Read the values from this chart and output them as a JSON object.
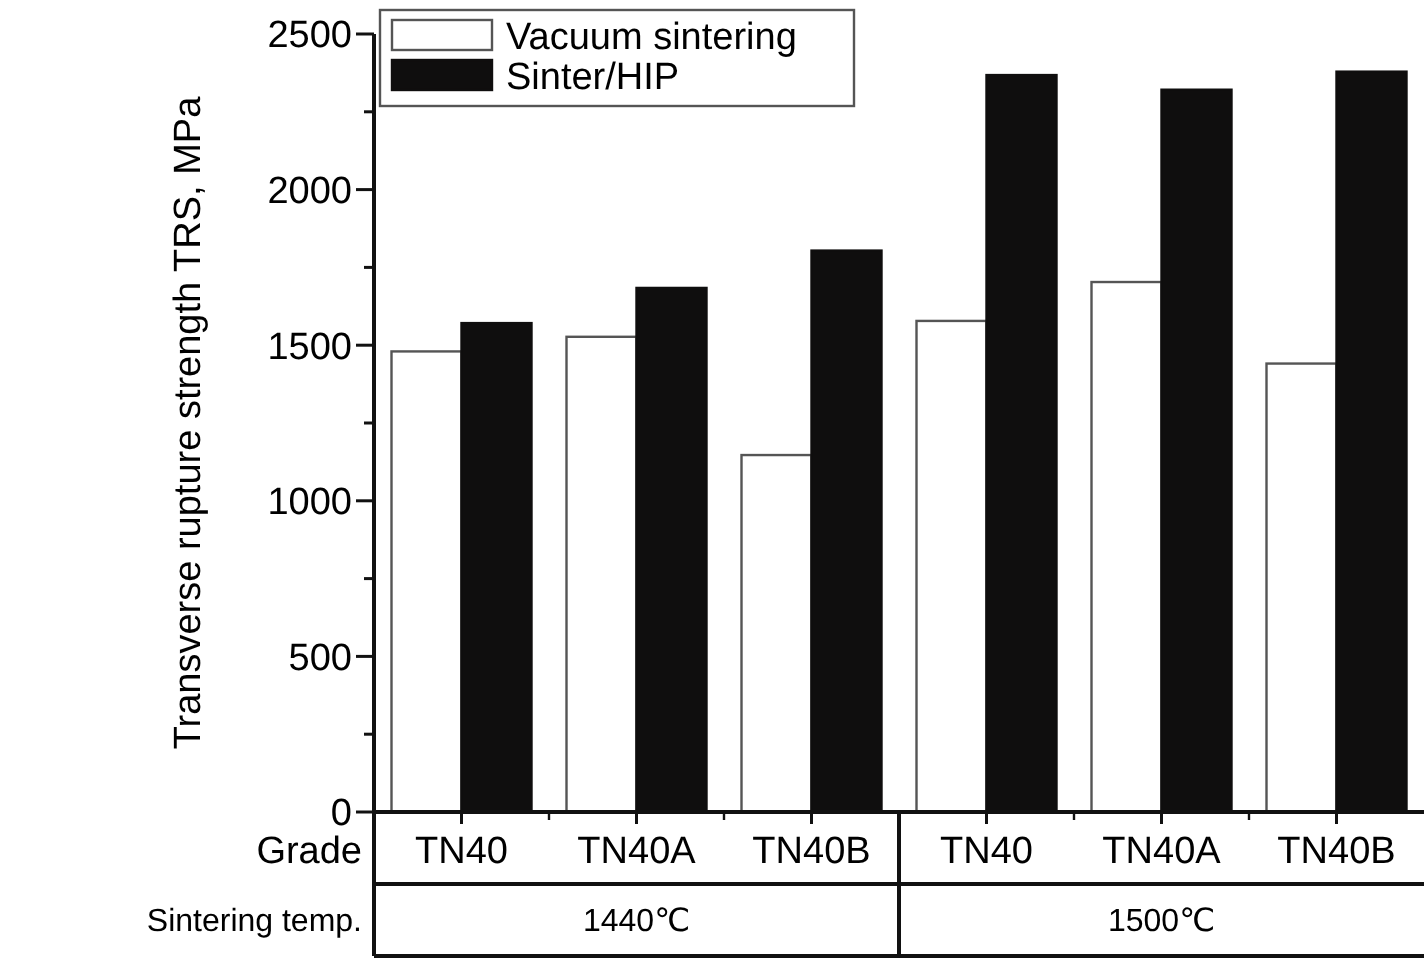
{
  "chart_data": {
    "type": "bar",
    "ylabel": "Transverse rupture strength TRS, MPa",
    "categories": [
      "TN40",
      "TN40A",
      "TN40B",
      "TN40",
      "TN40A",
      "TN40B"
    ],
    "series": [
      {
        "name": "Vacuum sintering",
        "color": "#ffffff",
        "values": [
          1480,
          1527,
          1147,
          1578,
          1703,
          1441
        ]
      },
      {
        "name": "Sinter/HIP",
        "color": "#0f0e0e",
        "values": [
          1571,
          1684,
          1804,
          2368,
          2321,
          2379
        ]
      }
    ],
    "ylim": [
      0,
      2500
    ],
    "yticks": [
      0,
      {
        "value": 250,
        "label": null
      },
      500,
      {
        "value": 750,
        "label": null
      },
      1000,
      {
        "value": 1250,
        "label": null
      },
      1500,
      {
        "value": 1750,
        "label": null
      },
      2000,
      {
        "value": 2250,
        "label": null
      },
      2500
    ],
    "legend": "top left",
    "annotations": [
      "Grade",
      "Sintering temp.",
      "1440℃",
      "1500℃"
    ]
  }
}
